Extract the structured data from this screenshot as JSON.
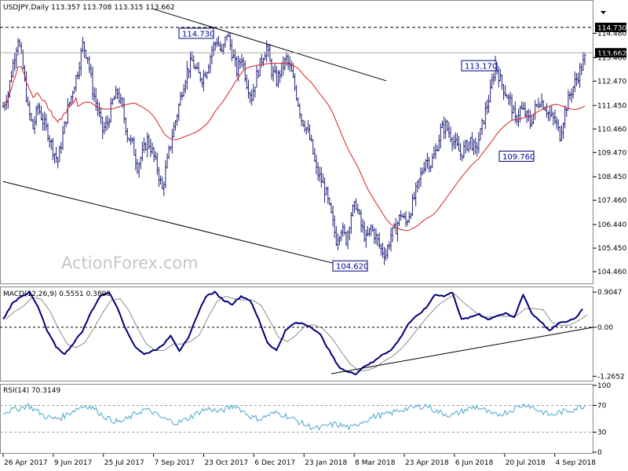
{
  "chart_data": {
    "type": "candlestick",
    "symbol": "USDJPY",
    "timeframe": "Daily",
    "header_text": "USDJPY,Daily  113.357 113.708 113.315 113.662",
    "last_price": "113.662",
    "watermark": "ActionForex.com",
    "price_panel": {
      "ylim": [
        104.0,
        115.75
      ],
      "yticks": [
        "114.480",
        "113.460",
        "112.470",
        "111.450",
        "110.460",
        "109.470",
        "108.450",
        "107.460",
        "106.440",
        "105.450",
        "104.460"
      ],
      "ohlc_daily_close_approx": [
        111.4,
        112.0,
        113.2,
        114.3,
        113.0,
        111.3,
        110.5,
        111.4,
        110.8,
        110.3,
        109.6,
        109.1,
        110.2,
        111.3,
        112.1,
        112.9,
        114.0,
        113.5,
        112.1,
        111.3,
        110.4,
        110.7,
        111.6,
        112.0,
        111.3,
        110.2,
        109.8,
        108.9,
        109.4,
        110.0,
        109.5,
        108.8,
        107.9,
        109.1,
        110.2,
        111.1,
        112.1,
        112.9,
        113.3,
        112.8,
        112.6,
        113.0,
        113.8,
        114.2,
        113.6,
        114.5,
        113.7,
        112.9,
        113.5,
        112.4,
        111.8,
        112.7,
        113.4,
        113.9,
        112.9,
        112.5,
        113.0,
        113.4,
        112.8,
        111.9,
        110.9,
        110.5,
        109.8,
        108.7,
        108.3,
        107.7,
        106.8,
        105.8,
        106.3,
        105.8,
        106.9,
        107.3,
        106.4,
        105.8,
        106.3,
        105.9,
        105.4,
        105.2,
        106.0,
        106.3,
        106.9,
        106.5,
        107.1,
        107.8,
        108.5,
        109.2,
        109.0,
        109.5,
        110.4,
        110.6,
        110.2,
        109.8,
        109.4,
        109.7,
        110.0,
        109.5,
        110.3,
        111.2,
        112.0,
        113.2,
        112.5,
        112.0,
        111.6,
        110.8,
        111.3,
        111.1,
        110.7,
        111.3,
        111.7,
        111.4,
        111.0,
        110.8,
        110.2,
        111.2,
        111.9,
        112.4,
        112.9,
        113.4
      ],
      "moving_average_label": "",
      "levels": [
        {
          "label": "114.730",
          "value": 114.73,
          "style": "dashed"
        },
        {
          "label": "113.662",
          "value": 113.662,
          "style": "solid"
        }
      ],
      "callouts": [
        {
          "label": "114.730",
          "value": 114.73
        },
        {
          "label": "113.170",
          "value": 113.17
        },
        {
          "label": "109.760",
          "value": 109.76
        },
        {
          "label": "104.620",
          "value": 104.62
        }
      ],
      "trendlines": [
        {
          "from": [
            "7 Sep 2017",
            115.5
          ],
          "to": [
            "8 Mar 2018",
            112.9
          ]
        },
        {
          "from": [
            "26 Apr 2017",
            108.25
          ],
          "to": [
            "8 Mar 2018",
            104.6
          ]
        }
      ]
    },
    "macd_panel": {
      "label": "MACD(12,26,9) 0.5551 0.3899",
      "ylim": [
        -1.36,
        1.01
      ],
      "yticks": [
        "0.9047",
        "0.00",
        "-1.2652"
      ],
      "zero_line": 0.0,
      "macd": [
        0.2,
        0.6,
        0.8,
        0.9,
        0.5,
        -0.1,
        -0.5,
        -0.7,
        -0.4,
        -0.1,
        0.4,
        0.8,
        0.9,
        0.5,
        -0.1,
        -0.5,
        -0.7,
        -0.6,
        -0.5,
        -0.2,
        -0.6,
        -0.3,
        0.3,
        0.8,
        0.9,
        0.7,
        0.6,
        0.8,
        0.7,
        0.2,
        -0.4,
        -0.6,
        -0.1,
        0.1,
        0.1,
        0.0,
        -0.2,
        -0.6,
        -1.0,
        -1.15,
        -1.2,
        -1.0,
        -0.9,
        -0.7,
        -0.6,
        -0.3,
        0.1,
        0.3,
        0.5,
        0.85,
        0.8,
        0.9,
        0.2,
        0.25,
        0.35,
        0.2,
        0.3,
        0.35,
        0.25,
        0.85,
        0.35,
        0.15,
        -0.1,
        0.1,
        0.15,
        0.25,
        0.55
      ],
      "signal_line": true
    },
    "rsi_panel": {
      "label": "RSI(14) 70.3149",
      "ylim": [
        0,
        100
      ],
      "yticks": [
        "100",
        "70",
        "30",
        "0"
      ],
      "levels": [
        70,
        30
      ],
      "values": [
        60,
        63,
        66,
        70,
        62,
        54,
        50,
        52,
        59,
        66,
        70,
        65,
        55,
        48,
        45,
        50,
        58,
        64,
        60,
        52,
        47,
        44,
        49,
        56,
        63,
        65,
        60,
        66,
        70,
        60,
        52,
        50,
        56,
        59,
        55,
        49,
        43,
        38,
        35,
        40,
        42,
        39,
        36,
        45,
        50,
        55,
        56,
        60,
        64,
        66,
        68,
        70,
        62,
        58,
        55,
        60,
        65,
        68,
        62,
        55,
        58,
        62,
        68,
        72,
        65,
        60,
        55,
        60,
        62,
        66,
        70
      ]
    },
    "x_axis": {
      "labels": [
        "26 Apr 2017",
        "9 Jun 2017",
        "25 Jul 2017",
        "7 Sep 2017",
        "23 Oct 2017",
        "6 Dec 2017",
        "23 Jan 2018",
        "8 Mar 2018",
        "23 Apr 2018",
        "6 Jun 2018",
        "20 Jul 2018",
        "4 Sep 2018"
      ]
    },
    "colors": {
      "candle": "#1f1f7a",
      "ma": "#d42020",
      "macd": "#00007a",
      "signal": "#8c8c8c",
      "rsi": "#47a6cc",
      "label_border": "#00007a",
      "tag_bg": "#000000"
    },
    "grid": false
  }
}
